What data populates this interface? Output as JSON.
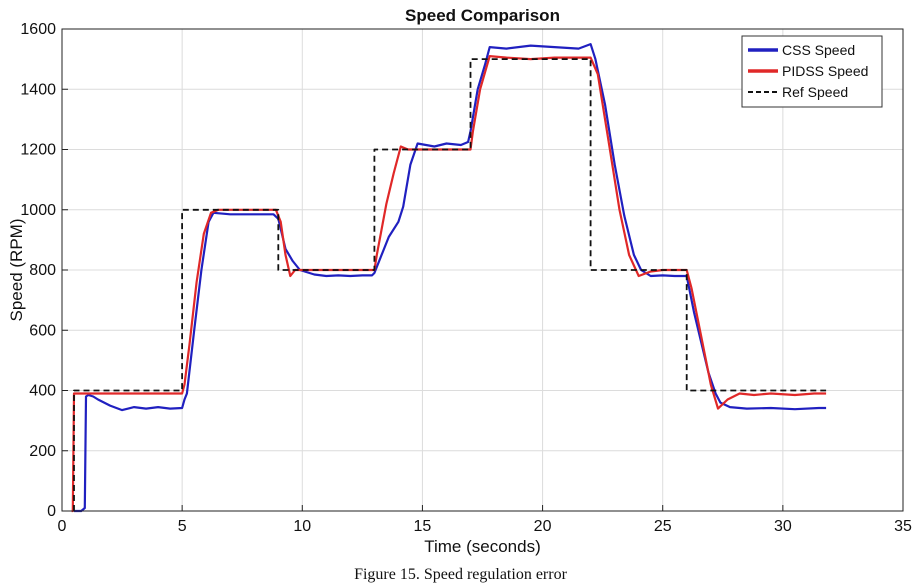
{
  "chart_data": {
    "type": "line",
    "title": "Speed Comparison",
    "xlabel": "Time (seconds)",
    "ylabel": "Speed (RPM)",
    "xlim": [
      0,
      35
    ],
    "ylim": [
      0,
      1600
    ],
    "xticks": [
      0,
      5,
      10,
      15,
      20,
      25,
      30,
      35
    ],
    "yticks": [
      0,
      200,
      400,
      600,
      800,
      1000,
      1200,
      1400,
      1600
    ],
    "grid": true,
    "legend_position": "top-right",
    "series": [
      {
        "name": "CSS Speed",
        "color": "#2020c0",
        "style": "solid",
        "points": [
          [
            0.5,
            0
          ],
          [
            0.8,
            0
          ],
          [
            0.95,
            10
          ],
          [
            1.0,
            380
          ],
          [
            1.1,
            385
          ],
          [
            1.3,
            380
          ],
          [
            1.5,
            370
          ],
          [
            2.0,
            350
          ],
          [
            2.5,
            335
          ],
          [
            3.0,
            345
          ],
          [
            3.5,
            340
          ],
          [
            4.0,
            345
          ],
          [
            4.5,
            340
          ],
          [
            5.0,
            342
          ],
          [
            5.1,
            370
          ],
          [
            5.2,
            390
          ],
          [
            5.5,
            600
          ],
          [
            5.8,
            800
          ],
          [
            6.1,
            960
          ],
          [
            6.3,
            990
          ],
          [
            7.0,
            985
          ],
          [
            8.0,
            985
          ],
          [
            8.8,
            985
          ],
          [
            9.0,
            970
          ],
          [
            9.3,
            870
          ],
          [
            9.6,
            830
          ],
          [
            9.9,
            800
          ],
          [
            10.5,
            785
          ],
          [
            11.0,
            780
          ],
          [
            11.5,
            782
          ],
          [
            12.0,
            780
          ],
          [
            12.5,
            782
          ],
          [
            12.9,
            782
          ],
          [
            13.0,
            790
          ],
          [
            13.3,
            850
          ],
          [
            13.6,
            910
          ],
          [
            14.0,
            960
          ],
          [
            14.2,
            1010
          ],
          [
            14.5,
            1150
          ],
          [
            14.8,
            1220
          ],
          [
            15.5,
            1210
          ],
          [
            16.0,
            1220
          ],
          [
            16.6,
            1215
          ],
          [
            16.9,
            1225
          ],
          [
            17.0,
            1260
          ],
          [
            17.3,
            1400
          ],
          [
            17.6,
            1480
          ],
          [
            17.8,
            1540
          ],
          [
            18.5,
            1535
          ],
          [
            19.5,
            1545
          ],
          [
            20.5,
            1540
          ],
          [
            21.5,
            1535
          ],
          [
            22.0,
            1550
          ],
          [
            22.2,
            1500
          ],
          [
            22.6,
            1350
          ],
          [
            23.0,
            1150
          ],
          [
            23.4,
            980
          ],
          [
            23.8,
            850
          ],
          [
            24.1,
            800
          ],
          [
            24.5,
            780
          ],
          [
            25.0,
            782
          ],
          [
            25.5,
            780
          ],
          [
            25.9,
            780
          ],
          [
            26.0,
            780
          ],
          [
            26.3,
            660
          ],
          [
            26.6,
            560
          ],
          [
            26.9,
            460
          ],
          [
            27.2,
            390
          ],
          [
            27.4,
            360
          ],
          [
            27.8,
            345
          ],
          [
            28.5,
            340
          ],
          [
            29.5,
            342
          ],
          [
            30.5,
            338
          ],
          [
            31.5,
            342
          ],
          [
            31.8,
            342
          ]
        ]
      },
      {
        "name": "PIDSS Speed",
        "color": "#e02828",
        "style": "solid",
        "points": [
          [
            0.4,
            0
          ],
          [
            0.45,
            0
          ],
          [
            0.5,
            390
          ],
          [
            1.0,
            390
          ],
          [
            2.0,
            390
          ],
          [
            3.0,
            390
          ],
          [
            4.0,
            390
          ],
          [
            5.0,
            390
          ],
          [
            5.1,
            420
          ],
          [
            5.3,
            550
          ],
          [
            5.6,
            760
          ],
          [
            5.9,
            920
          ],
          [
            6.2,
            990
          ],
          [
            6.5,
            1000
          ],
          [
            7.5,
            1000
          ],
          [
            8.5,
            1000
          ],
          [
            8.9,
            1000
          ],
          [
            9.1,
            960
          ],
          [
            9.3,
            850
          ],
          [
            9.5,
            780
          ],
          [
            9.7,
            800
          ],
          [
            10.0,
            800
          ],
          [
            11.0,
            800
          ],
          [
            12.0,
            800
          ],
          [
            13.0,
            800
          ],
          [
            13.1,
            850
          ],
          [
            13.5,
            1020
          ],
          [
            13.8,
            1120
          ],
          [
            14.1,
            1210
          ],
          [
            14.4,
            1200
          ],
          [
            15.0,
            1200
          ],
          [
            16.0,
            1200
          ],
          [
            17.0,
            1200
          ],
          [
            17.1,
            1260
          ],
          [
            17.4,
            1400
          ],
          [
            17.8,
            1510
          ],
          [
            18.5,
            1505
          ],
          [
            19.5,
            1500
          ],
          [
            20.5,
            1505
          ],
          [
            21.5,
            1505
          ],
          [
            22.0,
            1505
          ],
          [
            22.3,
            1450
          ],
          [
            22.8,
            1200
          ],
          [
            23.2,
            1000
          ],
          [
            23.6,
            850
          ],
          [
            24.0,
            780
          ],
          [
            24.5,
            795
          ],
          [
            25.0,
            800
          ],
          [
            26.0,
            800
          ],
          [
            26.2,
            740
          ],
          [
            26.6,
            580
          ],
          [
            27.0,
            420
          ],
          [
            27.3,
            340
          ],
          [
            27.7,
            370
          ],
          [
            28.2,
            390
          ],
          [
            28.8,
            385
          ],
          [
            29.5,
            390
          ],
          [
            30.5,
            385
          ],
          [
            31.3,
            390
          ],
          [
            31.8,
            390
          ]
        ]
      },
      {
        "name": "Ref Speed",
        "color": "#111111",
        "style": "dashed",
        "points": [
          [
            0.5,
            0
          ],
          [
            0.5,
            400
          ],
          [
            5.0,
            400
          ],
          [
            5.0,
            1000
          ],
          [
            9.0,
            1000
          ],
          [
            9.0,
            800
          ],
          [
            13.0,
            800
          ],
          [
            13.0,
            1200
          ],
          [
            17.0,
            1200
          ],
          [
            17.0,
            1500
          ],
          [
            22.0,
            1500
          ],
          [
            22.0,
            800
          ],
          [
            26.0,
            800
          ],
          [
            26.0,
            400
          ],
          [
            31.8,
            400
          ]
        ]
      }
    ]
  },
  "caption": "Figure 15. Speed regulation error"
}
